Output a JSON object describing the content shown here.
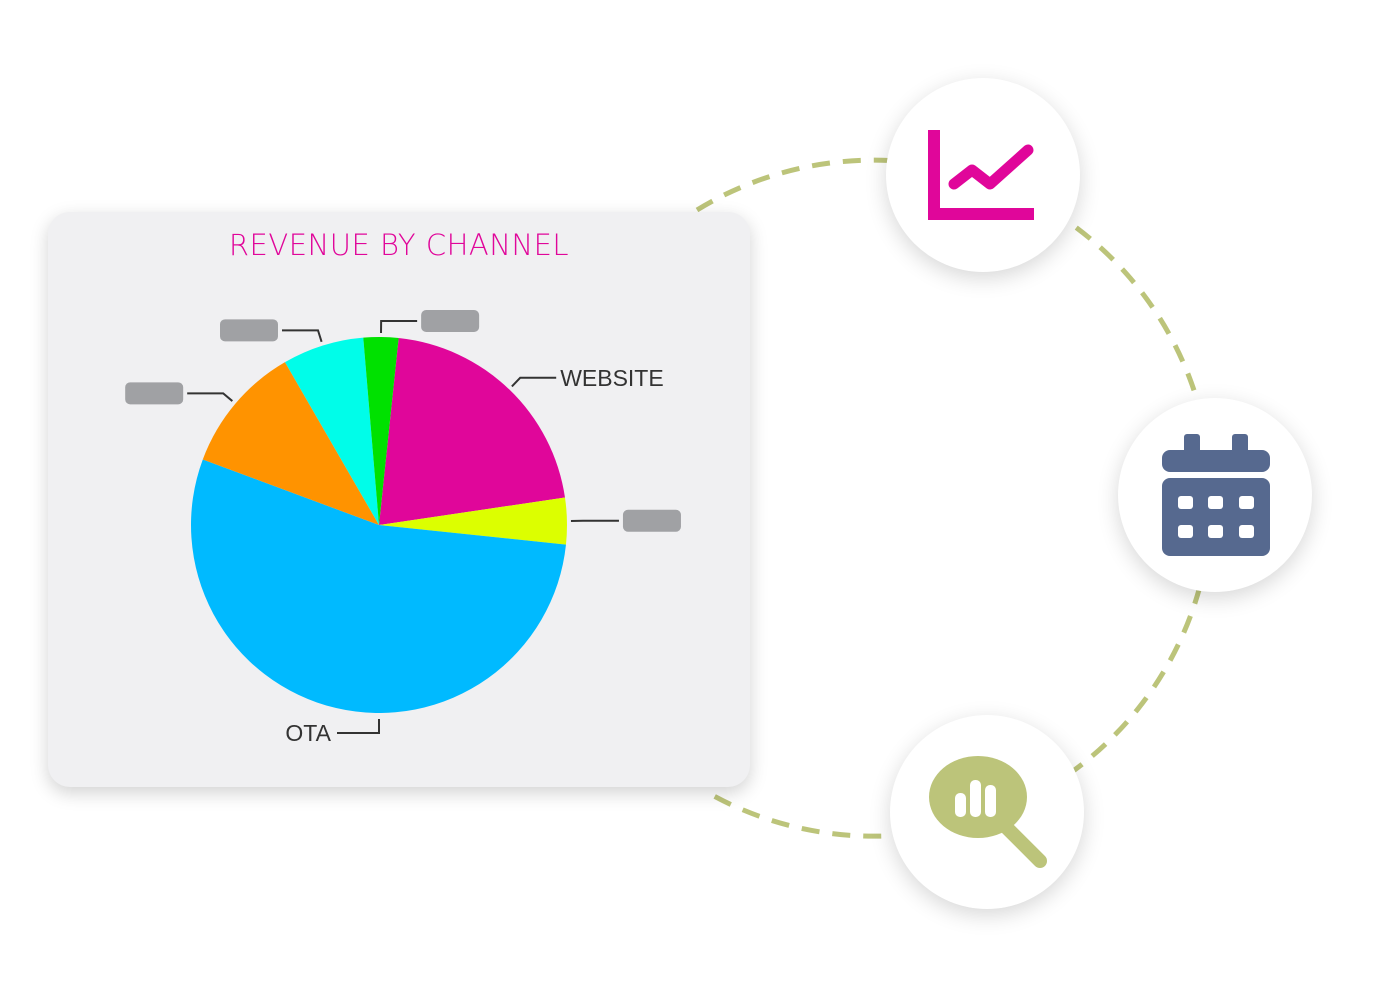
{
  "colors": {
    "title": "#e0069a",
    "card_bg": "#f0f0f2",
    "ring": "#bcc47a",
    "placeholder": "#a0a1a4",
    "leader": "#333333"
  },
  "chart_data": {
    "type": "pie",
    "title": "REVENUE BY CHANNEL",
    "start_angle_deg": 6,
    "direction": "clockwise",
    "slices": [
      {
        "label": "WEBSITE",
        "value": 21,
        "color": "#e0069a",
        "label_visible": true
      },
      {
        "label": "",
        "value": 4,
        "color": "#dcff00",
        "label_visible": false
      },
      {
        "label": "OTA",
        "value": 54,
        "color": "#00baff",
        "label_visible": true
      },
      {
        "label": "",
        "value": 11,
        "color": "#ff9300",
        "label_visible": false
      },
      {
        "label": "",
        "value": 7,
        "color": "#00fde9",
        "label_visible": false
      },
      {
        "label": "",
        "value": 3,
        "color": "#00e100",
        "label_visible": false
      }
    ]
  },
  "icons": [
    {
      "name": "line-chart-icon",
      "color": "#e0069a"
    },
    {
      "name": "calendar-icon",
      "color": "#56698f"
    },
    {
      "name": "search-analytics-icon",
      "color": "#bcc47a"
    }
  ]
}
